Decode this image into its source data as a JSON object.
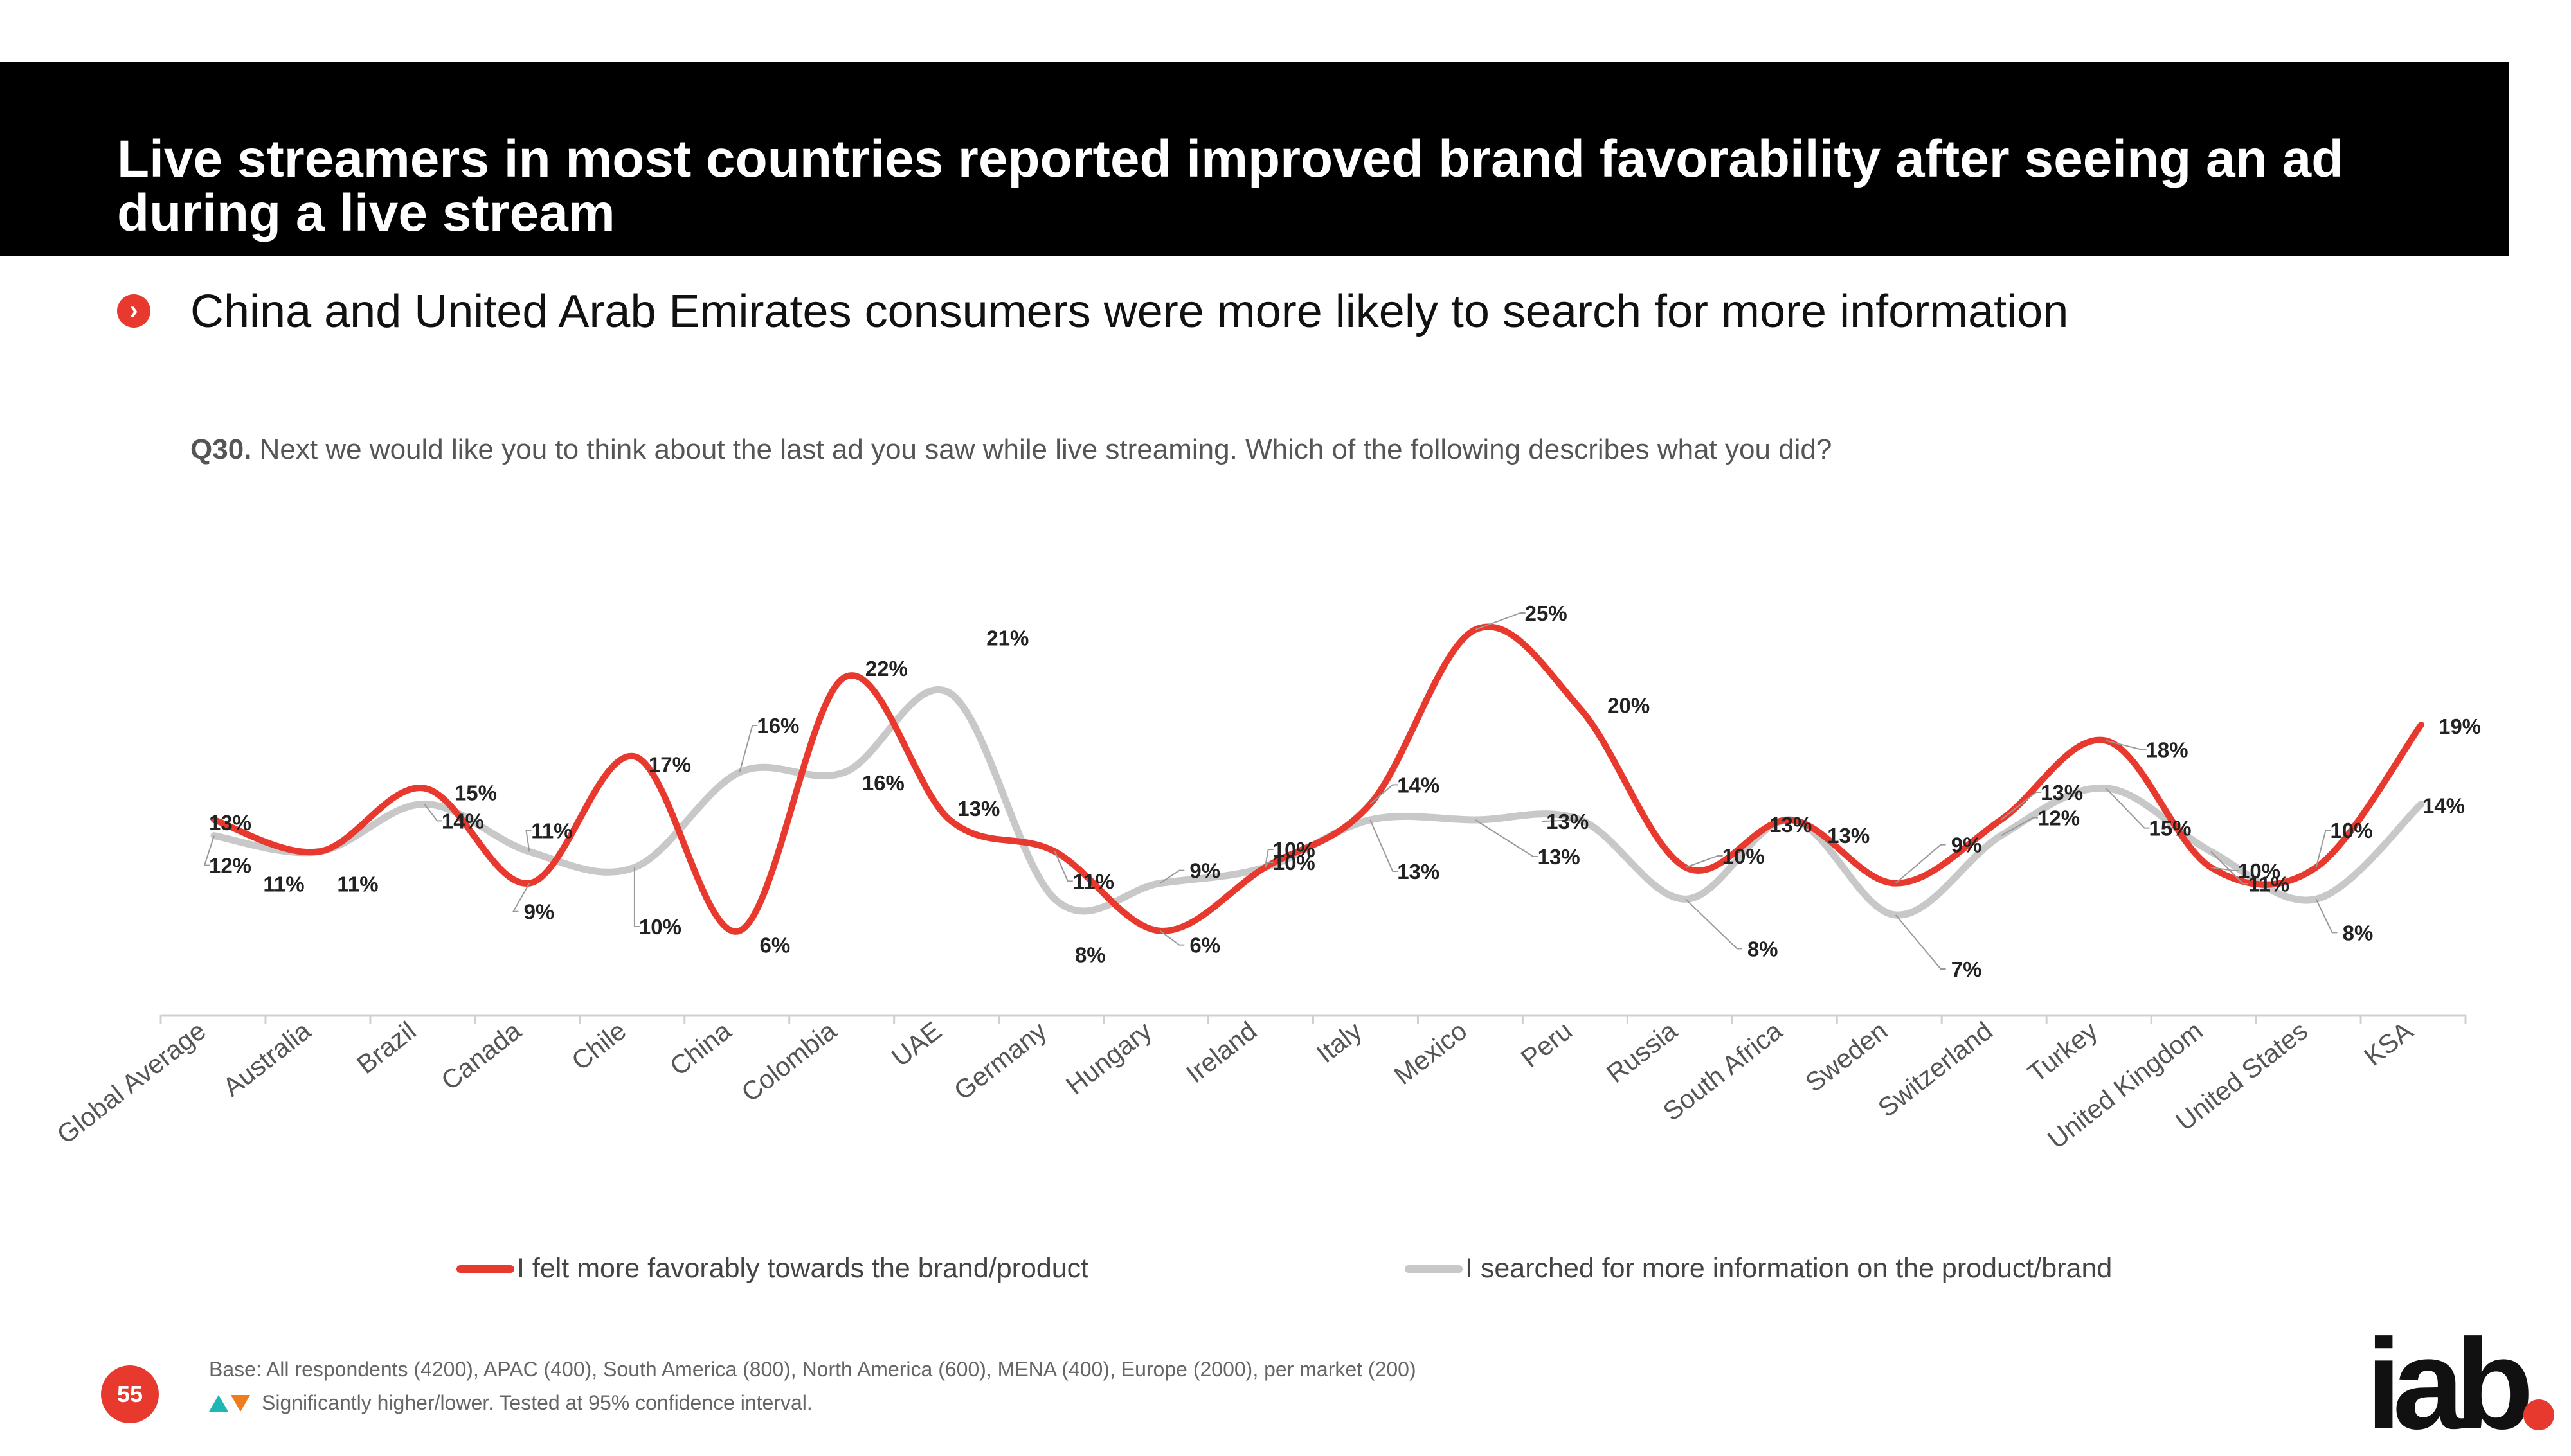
{
  "header": {
    "title": "Live streamers in most countries reported improved brand favorability after seeing an ad during a live stream"
  },
  "subtitle": "China and United Arab Emirates consumers were more likely to search for more information",
  "question": {
    "label": "Q30.",
    "text": "Next we would like you to think about the last ad you saw while live streaming. Which of the following describes what you did?"
  },
  "colors": {
    "red": "#e8392f",
    "gray": "#c8c8c8",
    "accent": "#000000"
  },
  "chart_data": {
    "type": "line",
    "title": "",
    "xlabel": "",
    "ylabel": "",
    "ylim": [
      0,
      30
    ],
    "grid": false,
    "legend_position": "bottom",
    "categories": [
      "Global Average",
      "Australia",
      "Brazil",
      "Canada",
      "Chile",
      "China",
      "Colombia",
      "UAE",
      "Germany",
      "Hungary",
      "Ireland",
      "Italy",
      "Mexico",
      "Peru",
      "Russia",
      "South Africa",
      "Sweden",
      "Switzerland",
      "Turkey",
      "United Kingdom",
      "United States",
      "KSA"
    ],
    "series": [
      {
        "name": "I felt more favorably towards the brand/product",
        "color": "#e8392f",
        "values": [
          13,
          11,
          15,
          9,
          17,
          6,
          22,
          13,
          11,
          6,
          10,
          14,
          25,
          20,
          10,
          13,
          9,
          13,
          18,
          10,
          10,
          19
        ],
        "labels": [
          "13%",
          "11%",
          "15%",
          "9%",
          "17%",
          "6%",
          "22%",
          "13%",
          "11%",
          "6%",
          "10%",
          "14%",
          "25%",
          "20%",
          "10%",
          "13%",
          "9%",
          "13%",
          "18%",
          "10%",
          "10%",
          "19%"
        ]
      },
      {
        "name": "I searched for more information on the product/brand",
        "color": "#c8c8c8",
        "values": [
          12,
          11,
          14,
          11,
          10,
          16,
          16,
          21,
          8,
          9,
          10,
          13,
          13,
          13,
          8,
          13,
          7,
          12,
          15,
          11,
          8,
          14
        ],
        "labels": [
          "12%",
          "11%",
          "14%",
          "11%",
          "10%",
          "16%",
          "16%",
          "21%",
          "8%",
          "9%",
          "10%",
          "13%",
          "13%",
          "13%",
          "8%",
          "13%",
          "7%",
          "12%",
          "15%",
          "11%",
          "8%",
          "14%"
        ]
      }
    ]
  },
  "footer": {
    "base": "Base: All respondents (4200), APAC (400), South America (800), North America (600), MENA (400), Europe (2000), per market (200)",
    "significance": "Significantly higher/lower. Tested at 95% confidence interval."
  },
  "page_number": "55",
  "logo_text": "iab"
}
